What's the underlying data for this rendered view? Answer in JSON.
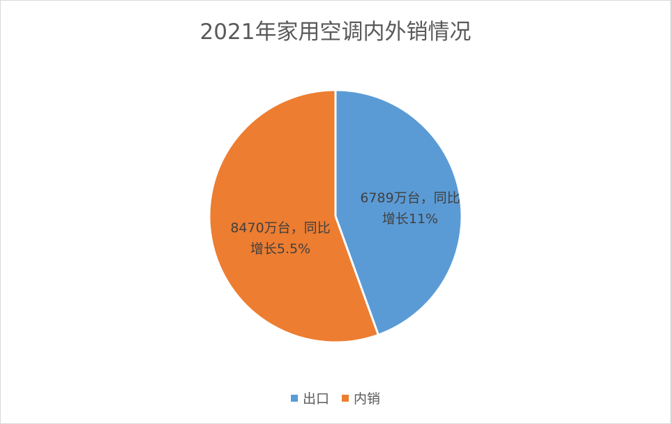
{
  "chart_data": {
    "type": "pie",
    "title": "2021年家用空调内外销情况",
    "slices": [
      {
        "name": "出口",
        "value": 6789,
        "color": "#5b9bd5",
        "label_lines": [
          "6789万台，同比",
          "增长11%"
        ]
      },
      {
        "name": "内销",
        "value": 8470,
        "color": "#ed7d31",
        "label_lines": [
          "8470万台，同比",
          "增长5.5%"
        ]
      }
    ],
    "start_angle_deg": 0,
    "direction": "clockwise",
    "legend_position": "bottom"
  }
}
